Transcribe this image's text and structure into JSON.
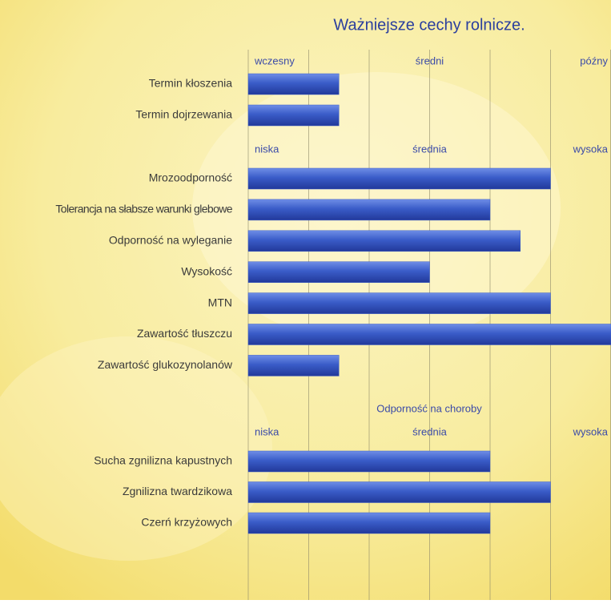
{
  "chart_data": [
    {
      "type": "bar",
      "title": "Ważniejsze cechy rolnicze.",
      "scale_labels": [
        "wczesny",
        "średni",
        "późny"
      ],
      "categories": [
        "Termin kłoszenia",
        "Termin dojrzewania"
      ],
      "values": [
        1.5,
        1.5
      ],
      "xlim": [
        0,
        6
      ],
      "xticks": [
        0,
        1,
        2,
        3,
        4,
        5,
        6
      ],
      "grid": true,
      "color": "#3a5cc8"
    },
    {
      "type": "bar",
      "scale_labels": [
        "niska",
        "średnia",
        "wysoka"
      ],
      "categories": [
        "Mrozoodporność",
        "Tolerancja na słabsze warunki glebowe",
        "Odporność na wyleganie",
        "Wysokość",
        "MTN",
        "Zawartość tłuszczu",
        "Zawartość glukozynolanów"
      ],
      "values": [
        5,
        4,
        4.5,
        3,
        5,
        6,
        1.5
      ],
      "xlim": [
        0,
        6
      ],
      "xticks": [
        0,
        1,
        2,
        3,
        4,
        5,
        6
      ],
      "grid": true,
      "color": "#3a5cc8"
    },
    {
      "type": "bar",
      "subtitle": "Odporność na choroby",
      "scale_labels": [
        "niska",
        "średnia",
        "wysoka"
      ],
      "categories": [
        "Sucha zgnilizna kapustnych",
        "Zgnilizna twardzikowa",
        "Czerń krzyżowych"
      ],
      "values": [
        4,
        5,
        4
      ],
      "xlim": [
        0,
        6
      ],
      "xticks": [
        0,
        1,
        2,
        3,
        4,
        5,
        6
      ],
      "grid": true,
      "color": "#3a5cc8"
    }
  ]
}
